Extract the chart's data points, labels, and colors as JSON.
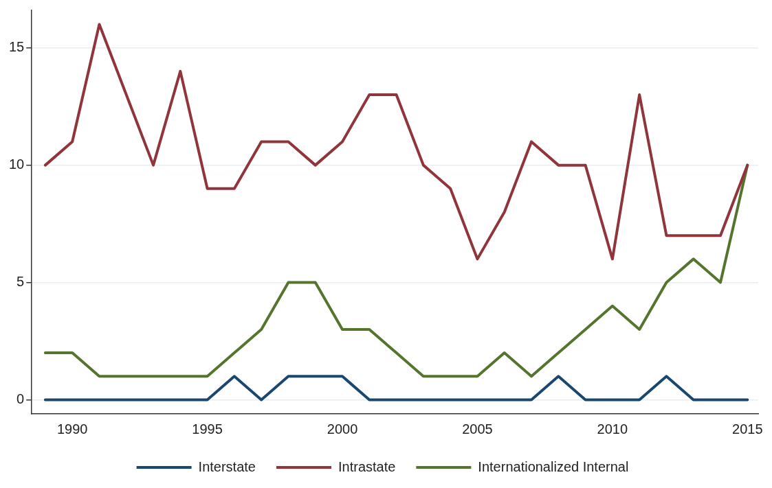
{
  "chart_data": {
    "type": "line",
    "x": [
      1989,
      1990,
      1991,
      1992,
      1993,
      1994,
      1995,
      1996,
      1997,
      1998,
      1999,
      2000,
      2001,
      2002,
      2003,
      2004,
      2005,
      2006,
      2007,
      2008,
      2009,
      2010,
      2011,
      2012,
      2013,
      2014,
      2015
    ],
    "series": [
      {
        "name": "Interstate",
        "color": "#1a476f",
        "values": [
          0,
          0,
          0,
          0,
          0,
          0,
          0,
          1,
          0,
          1,
          1,
          1,
          0,
          0,
          0,
          0,
          0,
          0,
          0,
          1,
          0,
          0,
          0,
          1,
          0,
          0,
          0
        ]
      },
      {
        "name": "Intrastate",
        "color": "#90353b",
        "values": [
          10,
          11,
          16,
          13,
          10,
          14,
          9,
          9,
          11,
          11,
          10,
          11,
          13,
          13,
          10,
          9,
          6,
          8,
          11,
          10,
          10,
          6,
          13,
          7,
          7,
          7,
          10
        ]
      },
      {
        "name": "Internationalized Internal",
        "color": "#55752f",
        "values": [
          2,
          2,
          1,
          1,
          1,
          1,
          1,
          2,
          3,
          5,
          5,
          3,
          3,
          2,
          1,
          1,
          1,
          2,
          1,
          2,
          3,
          4,
          3,
          5,
          6,
          5,
          10
        ]
      }
    ],
    "xlim": [
      1988.5,
      2015.4
    ],
    "xticks": [
      1990,
      1995,
      2000,
      2005,
      2010,
      2015
    ],
    "ylim": [
      -0.6,
      16.6
    ],
    "yticks": [
      0,
      5,
      10,
      15
    ],
    "grid": "y",
    "legend": "bottom",
    "marker": "none",
    "line_style": "solid"
  }
}
